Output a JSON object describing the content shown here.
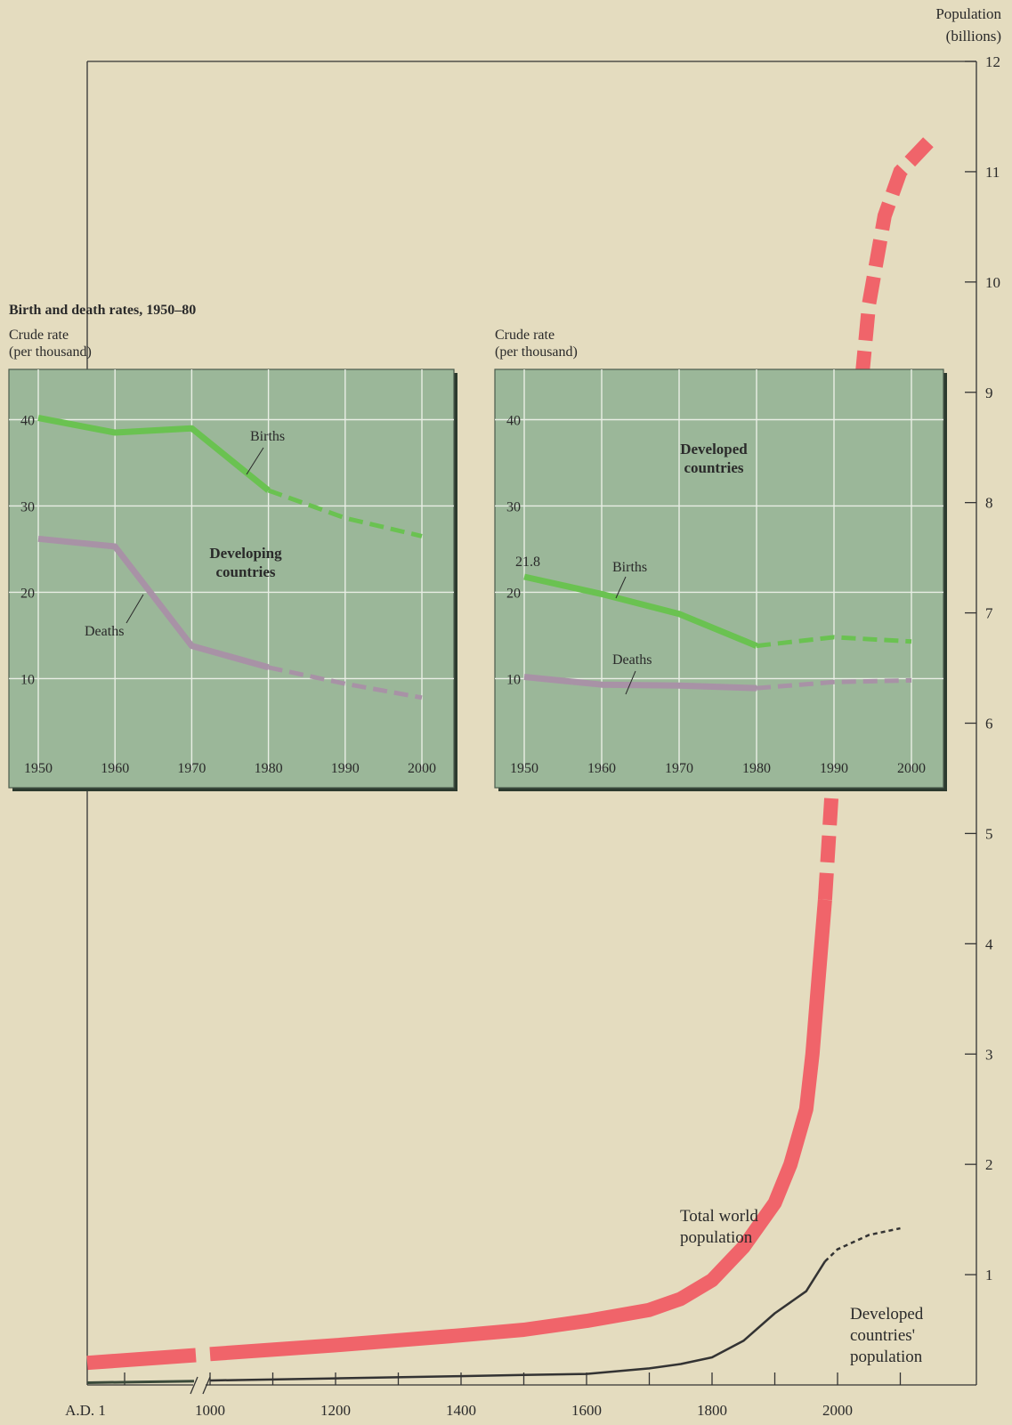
{
  "chart_data": [
    {
      "type": "line",
      "ylabel": "Population\n(billions)",
      "y_ticks": [
        1,
        2,
        3,
        4,
        5,
        6,
        7,
        8,
        9,
        10,
        11,
        12
      ],
      "ylim": [
        0,
        12
      ],
      "x_tick_labels": [
        "A.D. 1",
        "1000",
        "1200",
        "1400",
        "1600",
        "1800",
        "2000"
      ],
      "x_ticks": [
        1,
        1000,
        1100,
        1200,
        1300,
        1400,
        1500,
        1600,
        1700,
        1800,
        1900,
        2000,
        2100
      ],
      "axis_break": "between A.D. 1 and 1000",
      "series": [
        {
          "name": "Total world population",
          "x": [
            1,
            1000,
            1200,
            1400,
            1500,
            1600,
            1700,
            1750,
            1800,
            1850,
            1900,
            1925,
            1950,
            1960,
            1970,
            1980,
            1990,
            2000,
            2010,
            2025,
            2050,
            2075,
            2100,
            2150
          ],
          "y": [
            0.2,
            0.28,
            0.36,
            0.45,
            0.5,
            0.58,
            0.68,
            0.78,
            0.95,
            1.25,
            1.65,
            2.0,
            2.5,
            3.0,
            3.7,
            4.4,
            5.3,
            6.2,
            7.1,
            8.3,
            9.8,
            10.6,
            11.0,
            11.3
          ],
          "projected_from": 1980,
          "color": "#f0646a"
        },
        {
          "name": "Developed countries' population",
          "x": [
            1,
            1000,
            1200,
            1400,
            1500,
            1600,
            1700,
            1750,
            1800,
            1850,
            1900,
            1950,
            1980,
            2000,
            2050,
            2100
          ],
          "y": [
            0.02,
            0.04,
            0.06,
            0.08,
            0.09,
            0.1,
            0.15,
            0.19,
            0.25,
            0.4,
            0.65,
            0.85,
            1.12,
            1.23,
            1.36,
            1.42
          ],
          "projected_from": 1980,
          "color": "#2a2a2a"
        }
      ],
      "labels": {
        "total": [
          "Total world",
          "population"
        ],
        "developed": [
          "Developed",
          "countries'",
          "population"
        ]
      }
    },
    {
      "type": "line",
      "title": "Birth and death rates, 1950–80",
      "ylabel_lines": [
        "Crude rate",
        "(per thousand)"
      ],
      "annotation_lines": [
        "Developing",
        "countries"
      ],
      "x": [
        1950,
        1960,
        1970,
        1980,
        1990,
        2000
      ],
      "y_ticks": [
        10,
        20,
        30,
        40
      ],
      "xlim": [
        1950,
        2000
      ],
      "ylim": [
        2,
        45
      ],
      "projected_from": 1980,
      "series": [
        {
          "name": "Births",
          "values": [
            40.2,
            38.5,
            39.0,
            31.8,
            28.6,
            26.5
          ],
          "color": "#6ac251"
        },
        {
          "name": "Deaths",
          "values": [
            26.2,
            25.3,
            13.8,
            11.3,
            9.4,
            7.8
          ],
          "color": "#a892a6"
        }
      ]
    },
    {
      "type": "line",
      "ylabel_lines": [
        "Crude rate",
        "(per thousand)"
      ],
      "annotation_lines": [
        "Developed",
        "countries"
      ],
      "x": [
        1950,
        1960,
        1970,
        1980,
        1990,
        2000
      ],
      "y_ticks": [
        10,
        20,
        30,
        40
      ],
      "xlim": [
        1950,
        2000
      ],
      "ylim": [
        2,
        45
      ],
      "projected_from": 1980,
      "data_label": "21.8",
      "series": [
        {
          "name": "Births",
          "values": [
            21.8,
            19.8,
            17.5,
            13.8,
            14.8,
            14.3
          ],
          "color": "#6ac251"
        },
        {
          "name": "Deaths",
          "values": [
            10.2,
            9.3,
            9.2,
            8.9,
            9.6,
            9.8
          ],
          "color": "#a892a6"
        }
      ]
    }
  ]
}
